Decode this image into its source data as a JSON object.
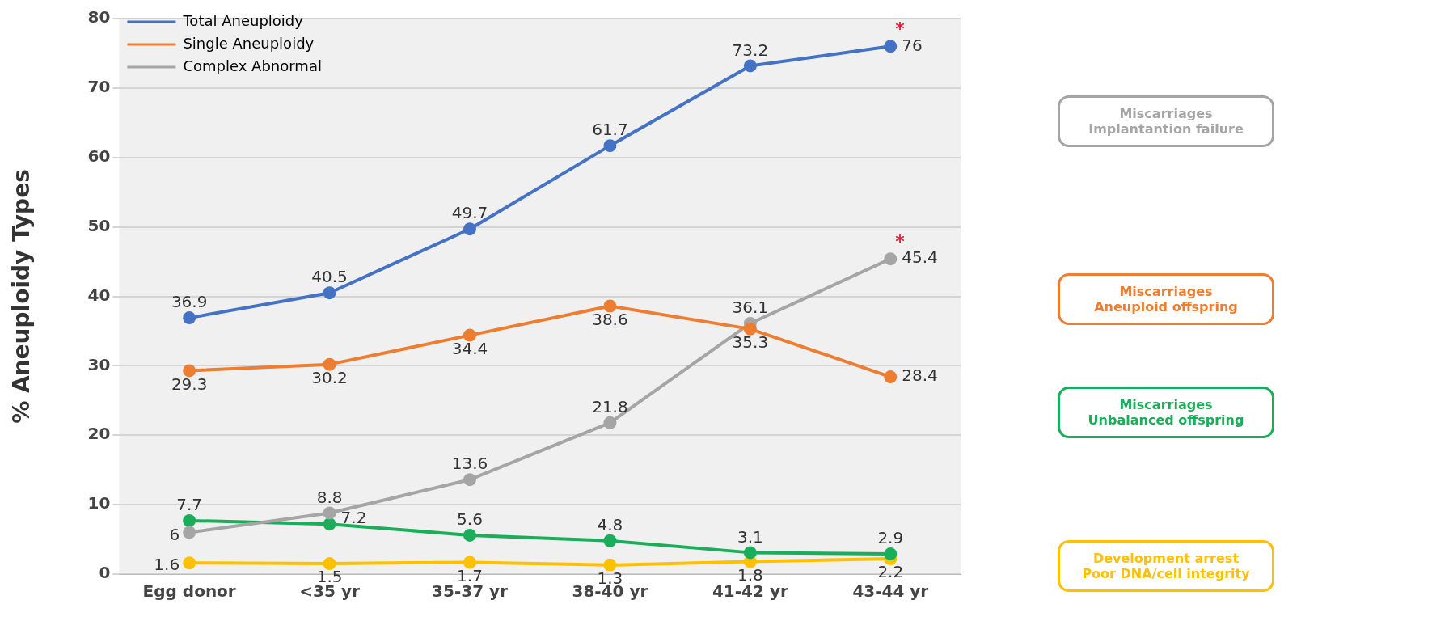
{
  "chart_data": {
    "type": "line",
    "ylabel": "% Aneuploidy Types",
    "categories": [
      "Egg donor",
      "<35 yr",
      "35-37 yr",
      "38-40 yr",
      "41-42 yr",
      "43-44 yr"
    ],
    "series": [
      {
        "name": "Total Aneuploidy",
        "color": "#4472c4",
        "values": [
          36.9,
          40.5,
          49.7,
          61.7,
          73.2,
          76
        ]
      },
      {
        "name": "Single Aneuploidy",
        "color": "#ed7d31",
        "values": [
          29.3,
          30.2,
          34.4,
          38.6,
          35.3,
          28.4
        ]
      },
      {
        "name": "Complex Abnormal",
        "color": "#a5a5a5",
        "values": [
          6,
          8.8,
          13.6,
          21.8,
          36.1,
          45.4
        ]
      },
      {
        "color": "#1aae5a",
        "values": [
          7.7,
          7.2,
          5.6,
          4.8,
          3.1,
          2.9
        ]
      },
      {
        "color": "#ffc000",
        "values": [
          1.6,
          1.5,
          1.7,
          1.3,
          1.8,
          2.2
        ]
      }
    ],
    "ylim": [
      0,
      80
    ],
    "yticks": [
      0,
      10,
      20,
      30,
      40,
      50,
      60,
      70,
      80
    ],
    "grid": "y",
    "legend": "top left",
    "marker": "circle",
    "line_style": "solid",
    "data_labels": true,
    "annotations": [
      {
        "text": "*",
        "x": "43-44 yr",
        "y": 76
      },
      {
        "text": "*",
        "x": "43-44 yr",
        "y": 45.4
      },
      "Miscarriages\nImplantantion failure",
      "Miscarriages\nAneuploid offspring",
      "Miscarriages\nUnbalanced offspring",
      "Development arrest\nPoor DNA/cell integrity"
    ]
  }
}
